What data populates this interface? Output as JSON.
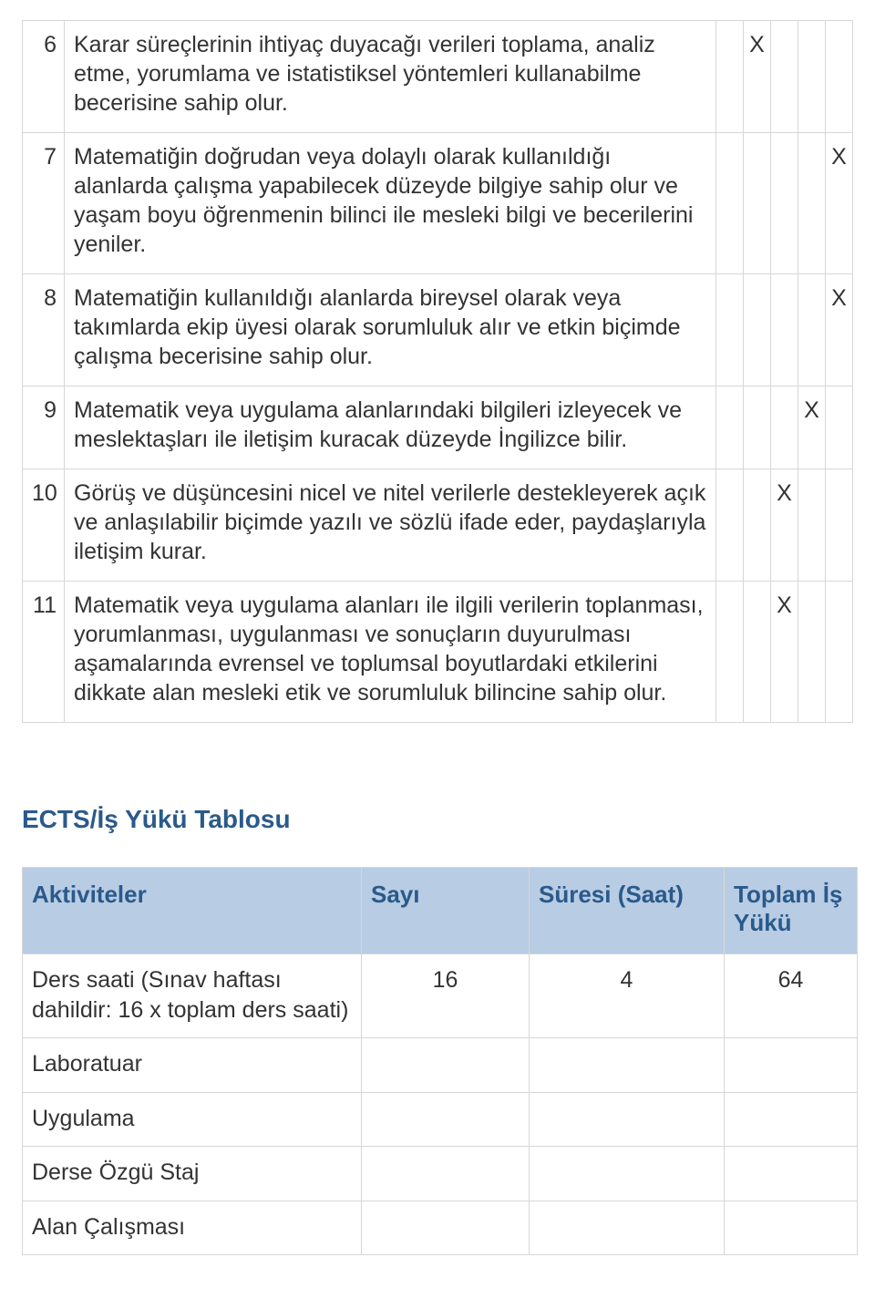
{
  "colors": {
    "heading": "#2a5a8a",
    "header_bg": "#b8cce4",
    "border": "#d7d7d7",
    "text": "#333333"
  },
  "outcomes": [
    {
      "num": "6",
      "desc": "Karar süreçlerinin ihtiyaç duyacağı verileri toplama, analiz etme, yorumlama ve istatistiksel yöntemleri kullanabilme becerisine sahip olur.",
      "marks": [
        "",
        "X",
        "",
        "",
        ""
      ]
    },
    {
      "num": "7",
      "desc": "Matematiğin doğrudan veya dolaylı olarak kullanıldığı alanlarda çalışma yapabilecek düzeyde bilgiye sahip olur ve yaşam boyu öğrenmenin bilinci ile mesleki bilgi ve becerilerini yeniler.",
      "marks": [
        "",
        "",
        "",
        "",
        "X"
      ]
    },
    {
      "num": "8",
      "desc": "Matematiğin kullanıldığı alanlarda bireysel olarak veya takımlarda ekip üyesi olarak sorumluluk alır ve etkin biçimde çalışma becerisine sahip olur.",
      "marks": [
        "",
        "",
        "",
        "",
        "X"
      ]
    },
    {
      "num": "9",
      "desc": "Matematik veya uygulama alanlarındaki bilgileri izleyecek ve meslektaşları ile iletişim kuracak düzeyde İngilizce bilir.",
      "marks": [
        "",
        "",
        "",
        "X",
        ""
      ]
    },
    {
      "num": "10",
      "desc": "Görüş ve düşüncesini nicel ve nitel verilerle destekleyerek açık ve anlaşılabilir biçimde yazılı ve sözlü ifade eder, paydaşlarıyla iletişim kurar.",
      "marks": [
        "",
        "",
        "X",
        "",
        ""
      ]
    },
    {
      "num": "11",
      "desc": "Matematik veya uygulama alanları ile ilgili verilerin toplanması, yorumlanması, uygulanması ve sonuçların duyurulması aşamalarında evrensel ve toplumsal boyutlardaki etkilerini dikkate alan mesleki etik ve sorumluluk bilincine sahip olur.",
      "marks": [
        "",
        "",
        "X",
        "",
        ""
      ]
    }
  ],
  "section_title": "ECTS/İş Yükü Tablosu",
  "workload": {
    "headers": {
      "aktiviteler": "Aktiviteler",
      "sayi": "Sayı",
      "suresi": "Süresi (Saat)",
      "toplam": "Toplam İş Yükü"
    },
    "rows": [
      {
        "activity": "Ders saati (Sınav haftası dahildir: 16 x toplam ders saati)",
        "sayi": "16",
        "sure": "4",
        "toplam": "64"
      },
      {
        "activity": "Laboratuar",
        "sayi": "",
        "sure": "",
        "toplam": ""
      },
      {
        "activity": "Uygulama",
        "sayi": "",
        "sure": "",
        "toplam": ""
      },
      {
        "activity": "Derse Özgü Staj",
        "sayi": "",
        "sure": "",
        "toplam": ""
      },
      {
        "activity": "Alan Çalışması",
        "sayi": "",
        "sure": "",
        "toplam": ""
      }
    ]
  }
}
